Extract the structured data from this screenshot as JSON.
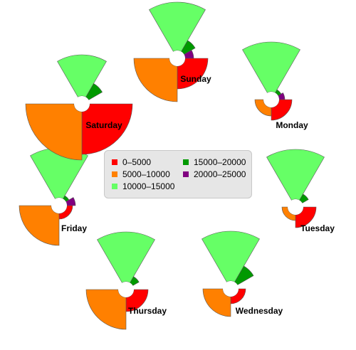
{
  "chart_data": {
    "type": "rose",
    "bands": [
      {
        "name": "0–5000",
        "color": "#ff0000"
      },
      {
        "name": "5000–10000",
        "color": "#ff8000"
      },
      {
        "name": "10000–15000",
        "color": "#66ff66"
      },
      {
        "name": "15000–20000",
        "color": "#009900"
      },
      {
        "name": "20000–25000",
        "color": "#800080"
      }
    ],
    "days": [
      {
        "label": "Sunday",
        "values": [
          32,
          50,
          68,
          18,
          12
        ]
      },
      {
        "label": "Monday",
        "values": [
          18,
          12,
          70,
          5,
          8
        ]
      },
      {
        "label": "Tuesday",
        "values": [
          18,
          8,
          70,
          10,
          0
        ]
      },
      {
        "label": "Wednesday",
        "values": [
          10,
          28,
          70,
          26,
          0
        ]
      },
      {
        "label": "Thursday",
        "values": [
          20,
          45,
          70,
          10,
          0
        ]
      },
      {
        "label": "Friday",
        "values": [
          8,
          45,
          70,
          5,
          12
        ]
      },
      {
        "label": "Saturday",
        "values": [
          60,
          68,
          58,
          22,
          0
        ]
      }
    ]
  }
}
